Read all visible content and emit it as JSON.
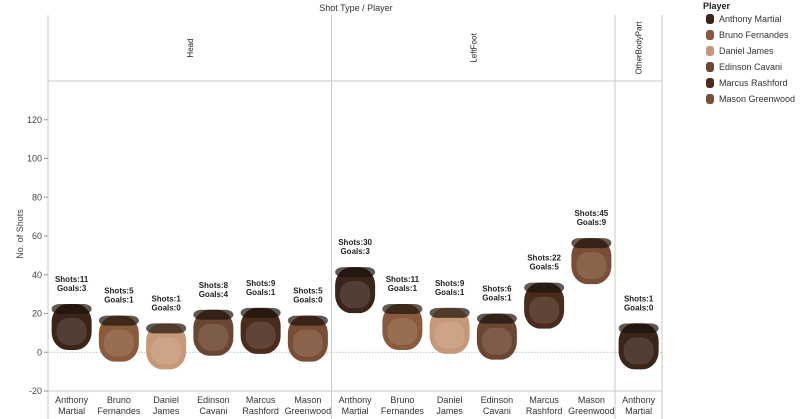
{
  "chart_data": {
    "type": "scatter",
    "title": "Shot Type  /  Player",
    "ylabel": "No. of Shots",
    "ylim": [
      -20,
      140
    ],
    "yticks": [
      -20,
      0,
      20,
      40,
      60,
      80,
      100,
      120
    ],
    "groups": [
      {
        "name": "Head",
        "points": [
          {
            "player": "Anthony Martial",
            "label": "Shots:11",
            "label2": "Goals:3",
            "shots": 11,
            "goals": 3
          },
          {
            "player": "Bruno Fernandes",
            "label": "Shots:5",
            "label2": "Goals:1",
            "shots": 5,
            "goals": 1
          },
          {
            "player": "Daniel James",
            "label": "Shots:1",
            "label2": "Goals:0",
            "shots": 1,
            "goals": 0
          },
          {
            "player": "Edinson Cavani",
            "label": "Shots:8",
            "label2": "Goals:4",
            "shots": 8,
            "goals": 4
          },
          {
            "player": "Marcus Rashford",
            "label": "Shots:9",
            "label2": "Goals:1",
            "shots": 9,
            "goals": 1
          },
          {
            "player": "Mason Greenwood",
            "label": "Shots:5",
            "label2": "Goals:0",
            "shots": 5,
            "goals": 0
          }
        ]
      },
      {
        "name": "LeftFoot",
        "points": [
          {
            "player": "Anthony Martial",
            "label": "Shots:30",
            "label2": "Goals:3",
            "shots": 30,
            "goals": 3
          },
          {
            "player": "Bruno Fernandes",
            "label": "Shots:11",
            "label2": "Goals:1",
            "shots": 11,
            "goals": 1
          },
          {
            "player": "Daniel James",
            "label": "Shots:9",
            "label2": "Goals:1",
            "shots": 9,
            "goals": 1
          },
          {
            "player": "Edinson Cavani",
            "label": "Shots:6",
            "label2": "Goals:1",
            "shots": 6,
            "goals": 1
          },
          {
            "player": "Marcus Rashford",
            "label": "Shots:22",
            "label2": "Goals:5",
            "shots": 22,
            "goals": 5
          },
          {
            "player": "Mason Greenwood",
            "label": "Shots:45",
            "label2": "Goals:9",
            "shots": 45,
            "goals": 9
          }
        ]
      },
      {
        "name": "OtherBodyPart",
        "points": [
          {
            "player": "Anthony Martial",
            "label": "Shots:1",
            "label2": "Goals:0",
            "shots": 1,
            "goals": 0
          }
        ]
      }
    ],
    "legend": {
      "title": "Player",
      "position": "top-right",
      "entries": [
        "Anthony Martial",
        "Bruno Fernandes",
        "Daniel James",
        "Edinson Cavani",
        "Marcus Rashford",
        "Mason Greenwood"
      ]
    },
    "colors": {
      "Anthony Martial": "#3b2418",
      "Bruno Fernandes": "#8a5a3c",
      "Daniel James": "#c79877",
      "Edinson Cavani": "#6b4630",
      "Marcus Rashford": "#4a2b1c",
      "Mason Greenwood": "#7a4e34"
    }
  }
}
